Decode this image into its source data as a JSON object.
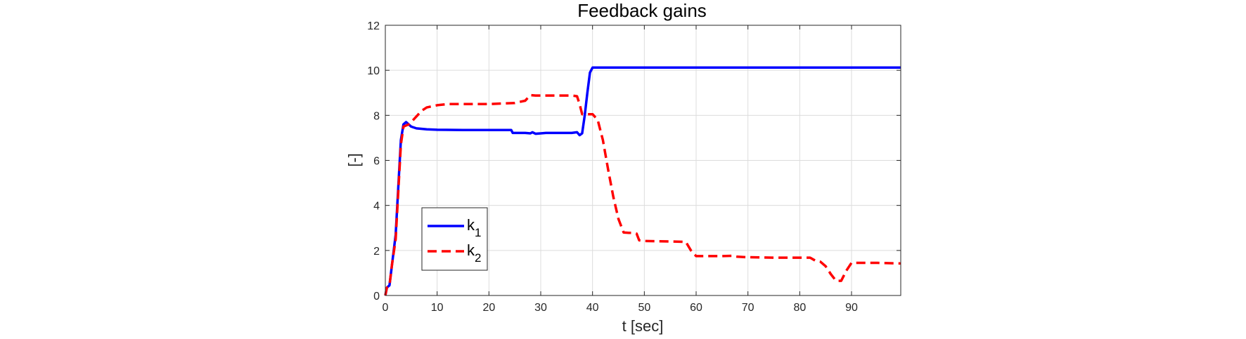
{
  "chart_data": {
    "type": "line",
    "title": "Feedback gains",
    "xlabel": "t [sec]",
    "ylabel": "[-]",
    "xlim": [
      0,
      99.5
    ],
    "ylim": [
      0,
      12
    ],
    "xticks": [
      0,
      10,
      20,
      30,
      40,
      50,
      60,
      70,
      80,
      90
    ],
    "yticks": [
      0,
      2,
      4,
      6,
      8,
      10,
      12
    ],
    "grid": true,
    "legend_position": "lower-left",
    "series": [
      {
        "name": "k",
        "subscript": "1",
        "color": "#0000ff",
        "style": "solid",
        "x": [
          0,
          0.3,
          0.8,
          1.3,
          2.0,
          2.5,
          3.0,
          3.5,
          4.0,
          4.5,
          5.0,
          6.0,
          8.0,
          10,
          15,
          20,
          24.3,
          24.6,
          25,
          27,
          28,
          28.4,
          29,
          30,
          31,
          32,
          33,
          34,
          35,
          36,
          37,
          37.5,
          38,
          38.5,
          39,
          39.5,
          40,
          41,
          45,
          50,
          60,
          70,
          80,
          90,
          99.5
        ],
        "y": [
          0,
          0.35,
          0.45,
          1.4,
          2.7,
          4.8,
          6.9,
          7.6,
          7.7,
          7.6,
          7.5,
          7.42,
          7.38,
          7.36,
          7.35,
          7.35,
          7.35,
          7.22,
          7.22,
          7.22,
          7.2,
          7.25,
          7.18,
          7.2,
          7.22,
          7.22,
          7.22,
          7.22,
          7.22,
          7.22,
          7.25,
          7.12,
          7.2,
          8.0,
          9.0,
          9.9,
          10.12,
          10.12,
          10.12,
          10.12,
          10.12,
          10.12,
          10.12,
          10.12,
          10.12
        ]
      },
      {
        "name": "k",
        "subscript": "2",
        "color": "#ff0000",
        "style": "dashed",
        "x": [
          0,
          0.3,
          0.8,
          1.3,
          2.0,
          2.5,
          3.0,
          3.5,
          4.0,
          4.5,
          5.0,
          6.0,
          7.0,
          8.0,
          10,
          12,
          15,
          20,
          25,
          26,
          27,
          28,
          29,
          30,
          35,
          36,
          37,
          37.5,
          38,
          39,
          40,
          41,
          42,
          43,
          44,
          45,
          46,
          47,
          48,
          48.5,
          49,
          50,
          55,
          58,
          59,
          60,
          62,
          65,
          67,
          68,
          70,
          75,
          80,
          82,
          83,
          84,
          85,
          86,
          87,
          88,
          89,
          90,
          92,
          95,
          99.5
        ],
        "y": [
          0,
          0.35,
          0.45,
          1.4,
          2.5,
          4.6,
          6.7,
          7.5,
          7.55,
          7.6,
          7.7,
          7.95,
          8.2,
          8.35,
          8.45,
          8.5,
          8.5,
          8.5,
          8.55,
          8.6,
          8.65,
          8.9,
          8.88,
          8.88,
          8.88,
          8.88,
          8.85,
          8.5,
          8.05,
          8.05,
          8.05,
          7.8,
          6.9,
          5.6,
          4.4,
          3.4,
          2.8,
          2.78,
          2.78,
          2.75,
          2.45,
          2.42,
          2.4,
          2.38,
          2.0,
          1.75,
          1.75,
          1.75,
          1.76,
          1.72,
          1.7,
          1.68,
          1.68,
          1.68,
          1.55,
          1.5,
          1.3,
          0.95,
          0.65,
          0.65,
          1.1,
          1.45,
          1.45,
          1.45,
          1.42
        ]
      }
    ]
  }
}
